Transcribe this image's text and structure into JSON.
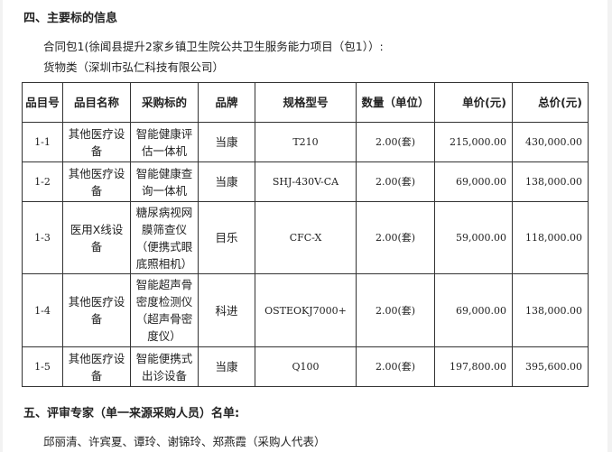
{
  "section4_title": "四、主要标的信息",
  "package_line": "合同包1(徐闻县提升2家乡镇卫生院公共卫生服务能力项目（包1））:",
  "supplier_line": "货物类（深圳市弘仁科技有限公司）",
  "table": {
    "headers": [
      "品目号",
      "品目名称",
      "采购标的",
      "品牌",
      "规格型号",
      "数量（单位）",
      "单价(元)",
      "总价(元)"
    ],
    "rows": [
      [
        "1-1",
        "其他医疗设备",
        "智能健康评估一体机",
        "当康",
        "T210",
        "2.00(套)",
        "215,000.00",
        "430,000.00"
      ],
      [
        "1-2",
        "其他医疗设备",
        "智能健康查询一体机",
        "当康",
        "SHJ-430V-CA",
        "2.00(套)",
        "69,000.00",
        "138,000.00"
      ],
      [
        "1-3",
        "医用X线设备",
        "糖尿病视网膜筛查仪（便携式眼底照相机）",
        "目乐",
        "CFC-X",
        "2.00(套)",
        "59,000.00",
        "118,000.00"
      ],
      [
        "1-4",
        "其他医疗设备",
        "智能超声骨密度检测仪（超声骨密度仪）",
        "科进",
        "OSTEOKJ7000+",
        "2.00(套)",
        "69,000.00",
        "138,000.00"
      ],
      [
        "1-5",
        "其他医疗设备",
        "智能便携式出诊设备",
        "当康",
        "Q100",
        "2.00(套)",
        "197,800.00",
        "395,600.00"
      ]
    ]
  },
  "section5_title": "五、评审专家（单一来源采购人员）名单:",
  "experts_line": "邱丽清、许宾夏、谭玲、谢锦玲、郑燕霞（采购人代表）"
}
